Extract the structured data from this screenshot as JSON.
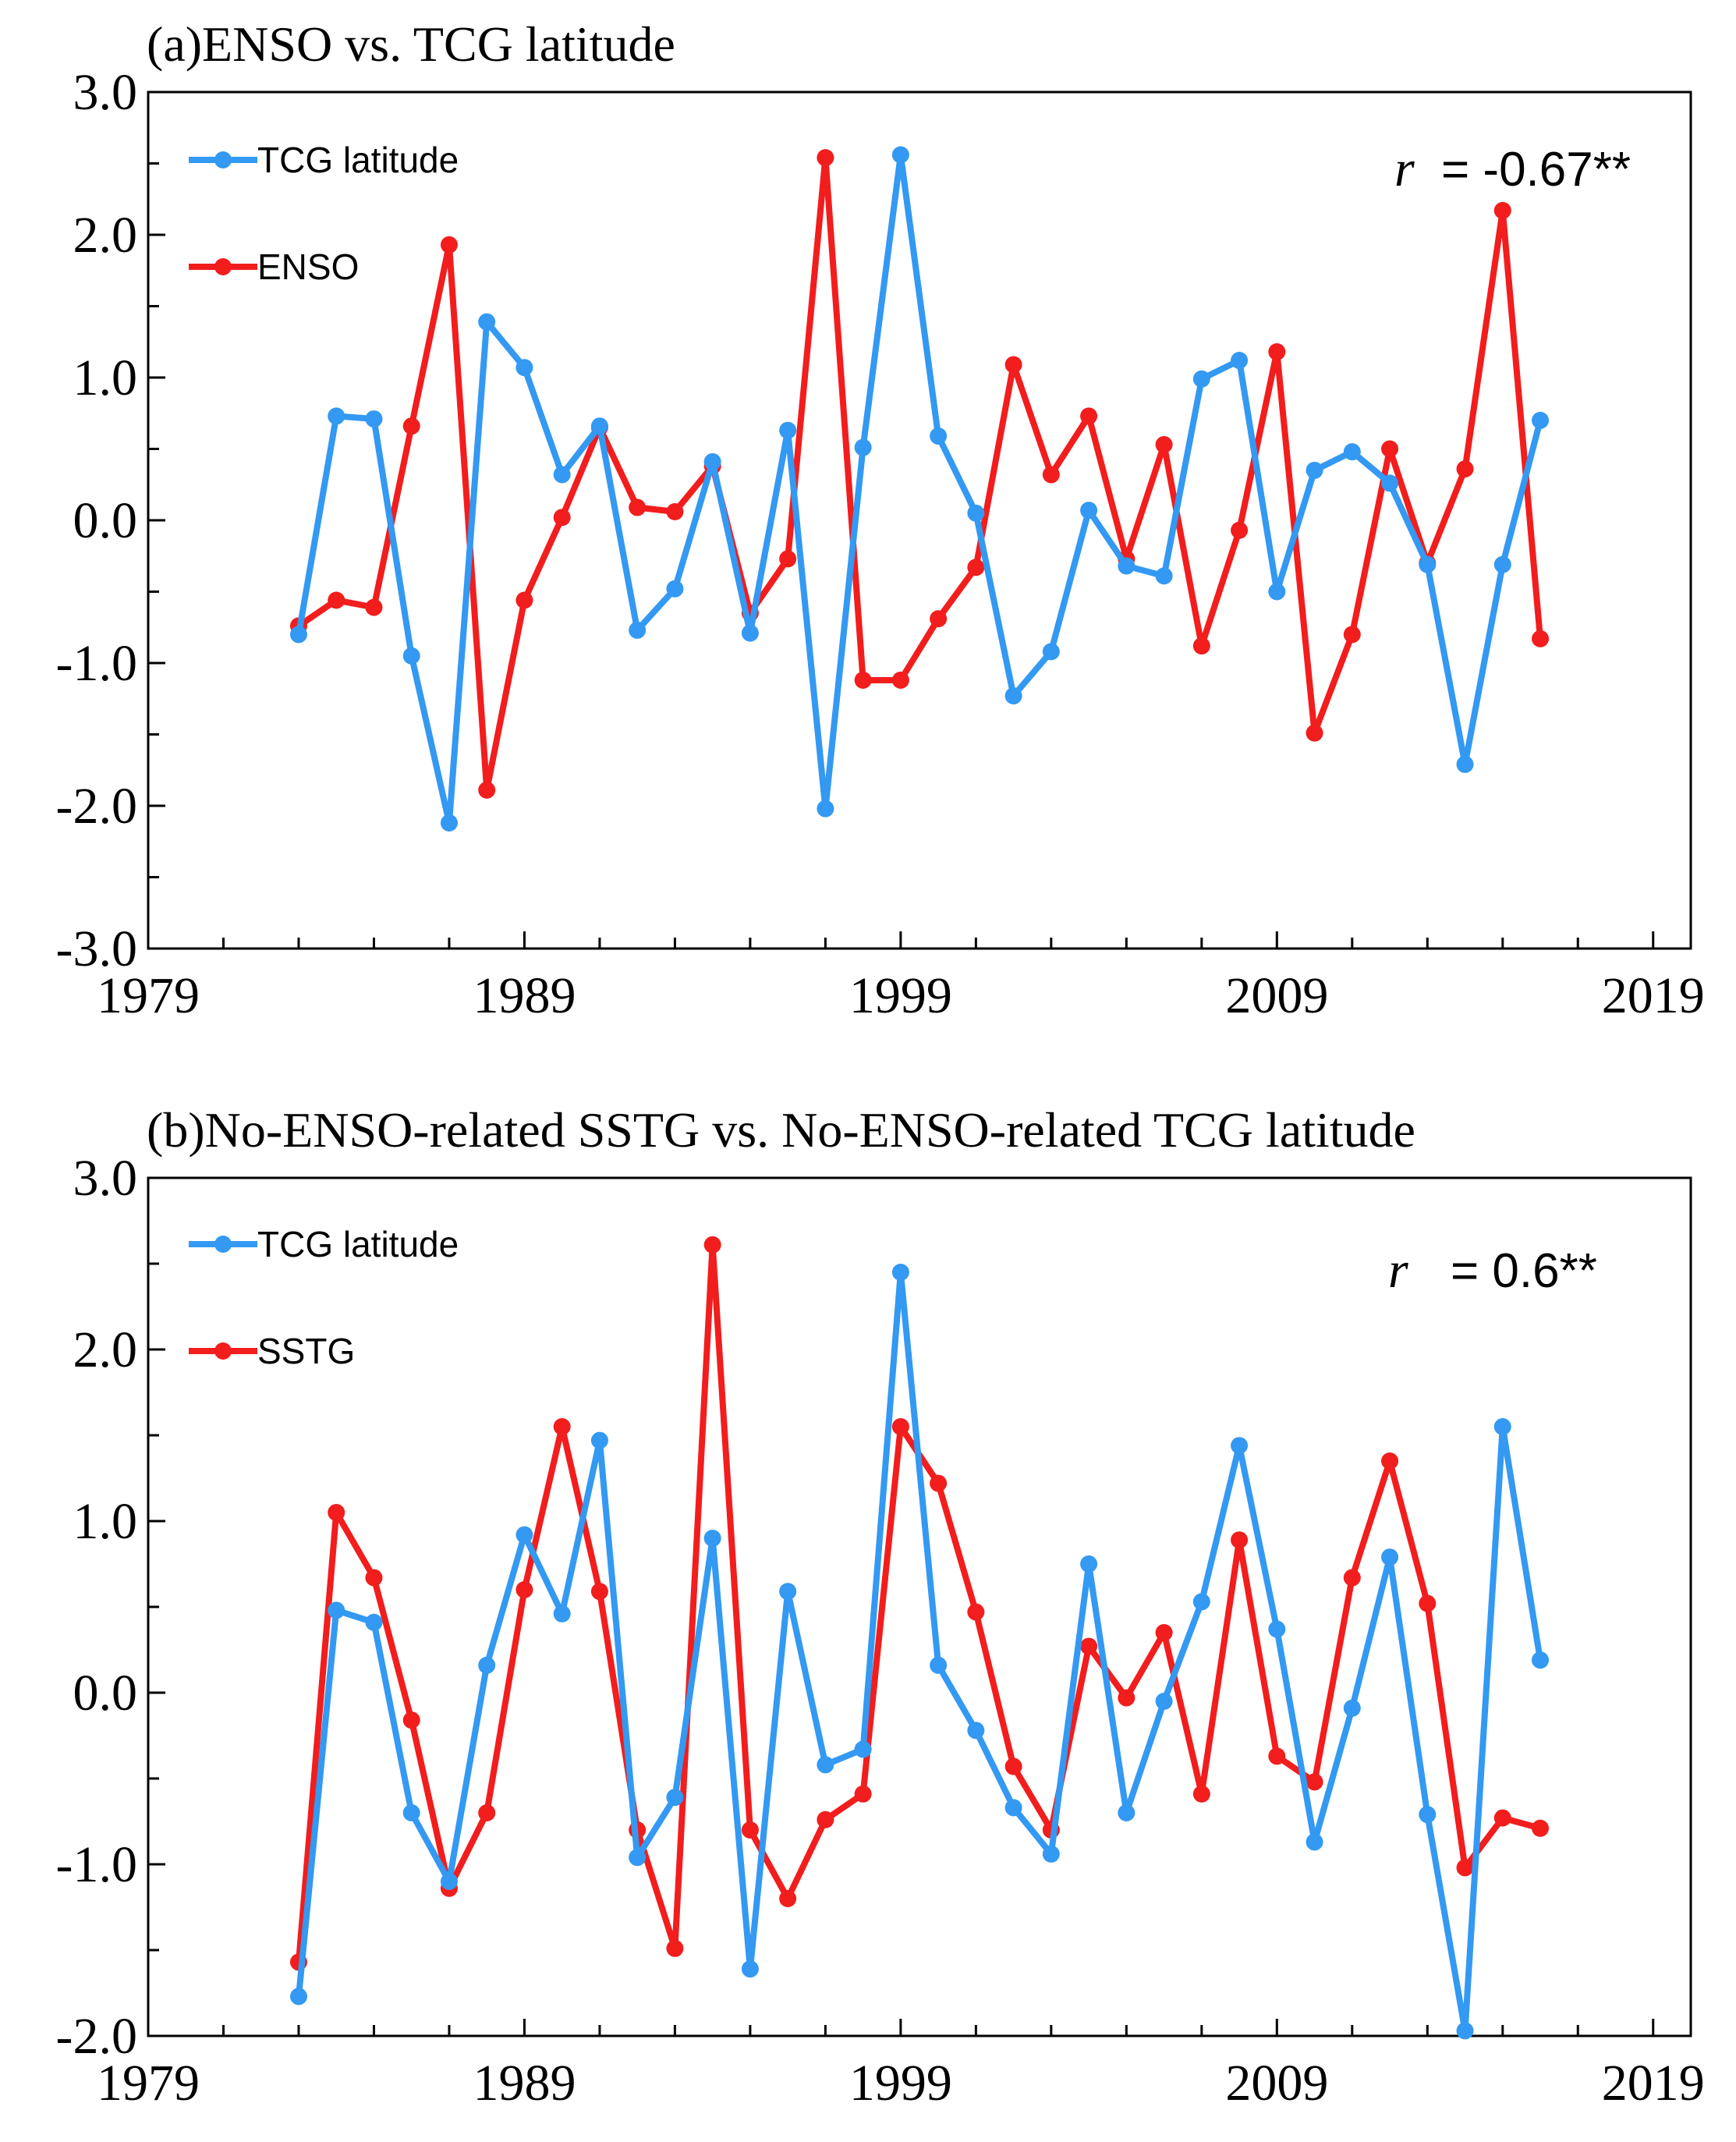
{
  "chart_data": [
    {
      "type": "line",
      "title": "(a)ENSO vs. TCG latitude",
      "xlabel": "",
      "ylabel": "",
      "xlim": [
        1979,
        2020
      ],
      "ylim": [
        -3.0,
        3.0
      ],
      "xticks": [
        1979,
        1989,
        1999,
        2009,
        2019
      ],
      "xtick_labels": [
        "1979",
        "1989",
        "1999",
        "2009",
        "2019"
      ],
      "yticks": [
        -3.0,
        -2.0,
        -1.0,
        0.0,
        1.0,
        2.0,
        3.0
      ],
      "ytick_labels": [
        "-3.0",
        "-2.0",
        "-1.0",
        "0.0",
        "1.0",
        "2.0",
        "3.0"
      ],
      "grid": false,
      "legend_position": "top-left",
      "annotation": {
        "symbol": "r",
        "text": "= -0.67**"
      },
      "x": [
        1983,
        1984,
        1985,
        1986,
        1987,
        1988,
        1989,
        1990,
        1991,
        1992,
        1993,
        1994,
        1995,
        1996,
        1997,
        1998,
        1999,
        2000,
        2001,
        2002,
        2003,
        2004,
        2005,
        2006,
        2007,
        2008,
        2009,
        2010,
        2011,
        2012,
        2013,
        2014,
        2015,
        2016
      ],
      "series": [
        {
          "name": "TCG latitude",
          "color": "#3399f2",
          "values": [
            -0.8,
            0.73,
            0.71,
            -0.95,
            -2.12,
            1.39,
            1.07,
            0.32,
            0.66,
            -0.77,
            -0.48,
            0.41,
            -0.79,
            0.63,
            -2.02,
            0.51,
            2.56,
            0.59,
            0.05,
            -1.23,
            -0.92,
            0.07,
            -0.32,
            -0.39,
            0.99,
            1.12,
            -0.5,
            0.35,
            0.48,
            0.26,
            -0.31,
            -1.71,
            -0.31,
            0.7
          ]
        },
        {
          "name": "ENSO",
          "color": "#f21d1d",
          "values": [
            -0.74,
            -0.56,
            -0.61,
            0.66,
            1.93,
            -1.89,
            -0.56,
            0.02,
            0.65,
            0.09,
            0.06,
            0.38,
            -0.65,
            -0.27,
            2.54,
            -1.12,
            -1.12,
            -0.69,
            -0.33,
            1.09,
            0.32,
            0.73,
            -0.27,
            0.53,
            -0.88,
            -0.07,
            1.18,
            -1.49,
            -0.8,
            0.5,
            -0.3,
            0.36,
            2.17,
            -0.83
          ]
        }
      ]
    },
    {
      "type": "line",
      "title": "(b)No-ENSO-related SSTG vs. No-ENSO-related TCG latitude",
      "xlabel": "",
      "ylabel": "",
      "xlim": [
        1979,
        2020
      ],
      "ylim": [
        -2.0,
        3.0
      ],
      "xticks": [
        1979,
        1989,
        1999,
        2009,
        2019
      ],
      "xtick_labels": [
        "1979",
        "1989",
        "1999",
        "2009",
        "2019"
      ],
      "yticks": [
        -2.0,
        -1.0,
        0.0,
        1.0,
        2.0,
        3.0
      ],
      "ytick_labels": [
        "-2.0",
        "-1.0",
        "0.0",
        "1.0",
        "2.0",
        "3.0"
      ],
      "grid": false,
      "legend_position": "top-left",
      "annotation": {
        "symbol": "r",
        "text": "= 0.6**"
      },
      "x": [
        1983,
        1984,
        1985,
        1986,
        1987,
        1988,
        1989,
        1990,
        1991,
        1992,
        1993,
        1994,
        1995,
        1996,
        1997,
        1998,
        1999,
        2000,
        2001,
        2002,
        2003,
        2004,
        2005,
        2006,
        2007,
        2008,
        2009,
        2010,
        2011,
        2012,
        2013,
        2014,
        2015,
        2016
      ],
      "series": [
        {
          "name": "TCG latitude",
          "color": "#3399f2",
          "values": [
            -1.77,
            0.48,
            0.41,
            -0.7,
            -1.1,
            0.16,
            0.92,
            0.46,
            1.47,
            -0.96,
            -0.61,
            0.9,
            -1.61,
            0.59,
            -0.42,
            -0.33,
            2.45,
            0.16,
            -0.22,
            -0.67,
            -0.94,
            0.75,
            -0.7,
            -0.05,
            0.53,
            1.44,
            0.37,
            -0.87,
            -0.09,
            0.79,
            -0.71,
            -1.97,
            1.55,
            0.19
          ]
        },
        {
          "name": "SSTG",
          "color": "#f21d1d",
          "values": [
            -1.57,
            1.05,
            0.67,
            -0.16,
            -1.14,
            -0.7,
            0.6,
            1.55,
            0.59,
            -0.8,
            -1.49,
            2.61,
            -0.8,
            -1.2,
            -0.74,
            -0.59,
            1.55,
            1.22,
            0.47,
            -0.43,
            -0.8,
            0.27,
            -0.03,
            0.35,
            -0.59,
            0.89,
            -0.37,
            -0.52,
            0.67,
            1.35,
            0.52,
            -1.02,
            -0.73,
            -0.79
          ]
        }
      ]
    }
  ]
}
